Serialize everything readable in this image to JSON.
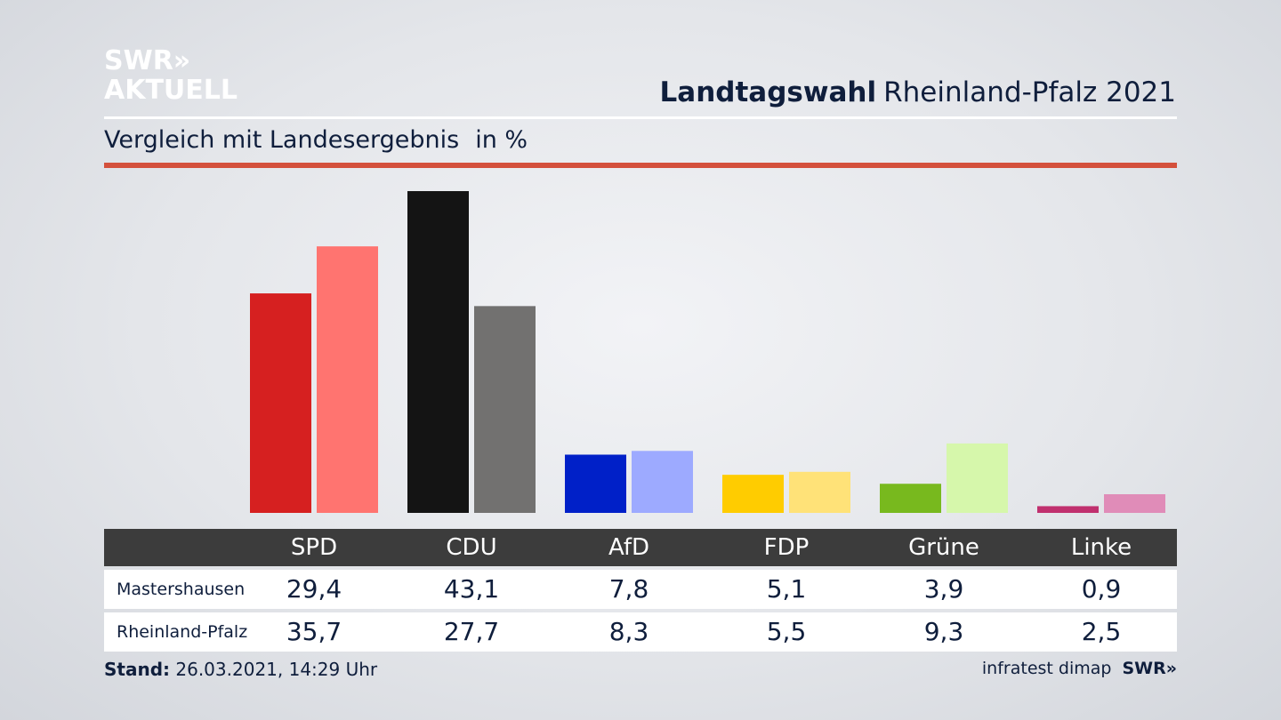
{
  "brand": {
    "line1": "SWR»",
    "line2": "AKTUELL"
  },
  "header": {
    "title_bold": "Landtagswahl",
    "title_rest": "Rheinland-Pfalz 2021"
  },
  "subtitle": {
    "text": "Vergleich mit Landesergebnis",
    "unit": "in %"
  },
  "chart_data": {
    "type": "bar",
    "title": "Landtagswahl Rheinland-Pfalz 2021",
    "subtitle": "Vergleich mit Landesergebnis in %",
    "categories": [
      "SPD",
      "CDU",
      "AfD",
      "FDP",
      "Grüne",
      "Linke"
    ],
    "series": [
      {
        "name": "Mastershausen",
        "values": [
          29.4,
          43.1,
          7.8,
          5.1,
          3.9,
          0.9
        ],
        "colors": [
          "#d62020",
          "#141414",
          "#0020c8",
          "#ffcc00",
          "#78b91e",
          "#c0306e"
        ]
      },
      {
        "name": "Rheinland-Pfalz",
        "values": [
          35.7,
          27.7,
          8.3,
          5.5,
          9.3,
          2.5
        ],
        "colors": [
          "#ff7470",
          "#727170",
          "#9daaff",
          "#ffe278",
          "#d6f7ab",
          "#e08cb8"
        ]
      }
    ],
    "display_values": {
      "Mastershausen": [
        "29,4",
        "43,1",
        "7,8",
        "5,1",
        "3,9",
        "0,9"
      ],
      "Rheinland-Pfalz": [
        "35,7",
        "27,7",
        "8,3",
        "5,5",
        "9,3",
        "2,5"
      ]
    },
    "ylim": [
      0,
      43.1
    ],
    "grid": false,
    "xlabel": "",
    "ylabel": ""
  },
  "footer": {
    "stand_label": "Stand:",
    "stand_value": "26.03.2021, 14:29 Uhr",
    "source": "infratest dimap",
    "brand": "SWR»"
  }
}
